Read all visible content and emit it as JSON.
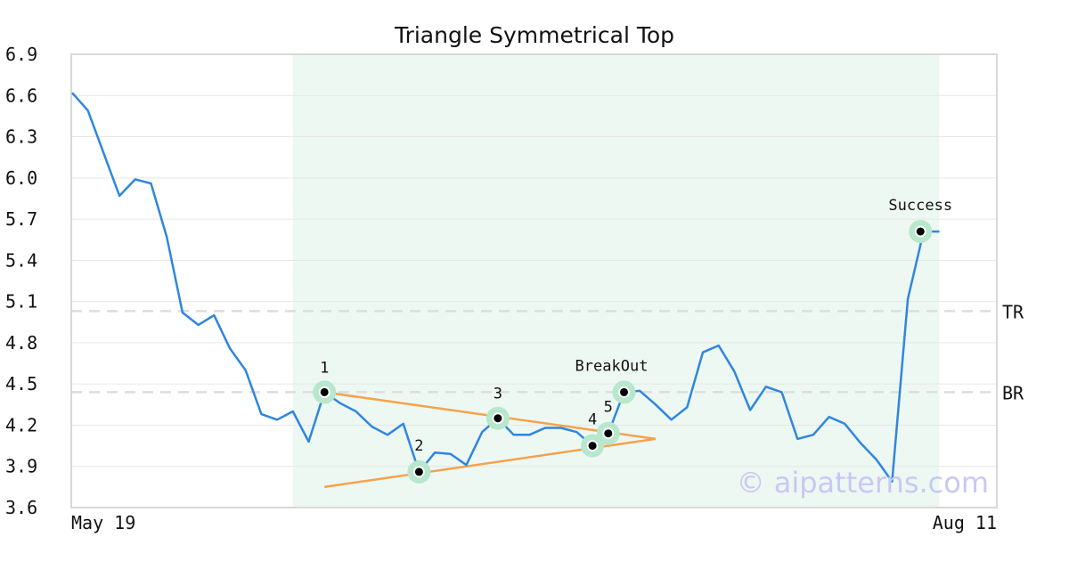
{
  "chart_data": {
    "type": "line",
    "title": "Triangle Symmetrical Top",
    "xlabel": "",
    "ylabel": "",
    "ylim": [
      3.6,
      6.9
    ],
    "yticks": [
      "3.6",
      "3.9",
      "4.2",
      "4.5",
      "4.8",
      "5.1",
      "5.4",
      "5.7",
      "6.0",
      "6.3",
      "6.6",
      "6.9"
    ],
    "xtick_labels": [
      "May 19",
      "Aug 11"
    ],
    "grid": true,
    "colors": {
      "line": "#2f86e0",
      "trendline": "#f5a24c",
      "pattern_zone": "#eef8f3",
      "marker_halo": "#b7e7cc",
      "level_line": "#dddddd"
    },
    "series": [
      {
        "values": [
          6.62,
          6.49,
          6.18,
          5.87,
          5.99,
          5.96,
          5.57,
          5.02,
          4.93,
          5.0,
          4.76,
          4.6,
          4.28,
          4.24,
          4.3,
          4.08,
          4.44,
          4.36,
          4.3,
          4.19,
          4.13,
          4.21,
          3.86,
          4.0,
          3.99,
          3.91,
          4.15,
          4.25,
          4.13,
          4.13,
          4.18,
          4.18,
          4.15,
          4.05,
          4.14,
          4.44,
          4.45,
          4.35,
          4.24,
          4.33,
          4.73,
          4.78,
          4.59,
          4.31,
          4.48,
          4.44,
          4.1,
          4.13,
          4.26,
          4.21,
          4.07,
          3.95,
          3.79,
          5.12,
          5.61,
          5.61
        ]
      }
    ],
    "pattern_zone": {
      "start_index": 14,
      "end_index": 55
    },
    "levels": [
      {
        "label": "TR",
        "value": 5.03
      },
      {
        "label": "BR",
        "value": 4.44
      }
    ],
    "trendlines": [
      {
        "from": [
          16,
          4.44
        ],
        "to": [
          37,
          4.1
        ]
      },
      {
        "from": [
          16,
          3.75
        ],
        "to": [
          37,
          4.1
        ]
      }
    ],
    "points": [
      {
        "label": "1",
        "index": 16,
        "value": 4.44
      },
      {
        "label": "2",
        "index": 22,
        "value": 3.86
      },
      {
        "label": "3",
        "index": 27,
        "value": 4.25
      },
      {
        "label": "4",
        "index": 33,
        "value": 4.05
      },
      {
        "label": "5",
        "index": 34,
        "value": 4.14
      },
      {
        "label": "BreakOut",
        "index": 35,
        "value": 4.44
      },
      {
        "label": "Success",
        "index": 53.8,
        "value": 5.61
      }
    ],
    "watermark": "© aipatterns.com"
  }
}
